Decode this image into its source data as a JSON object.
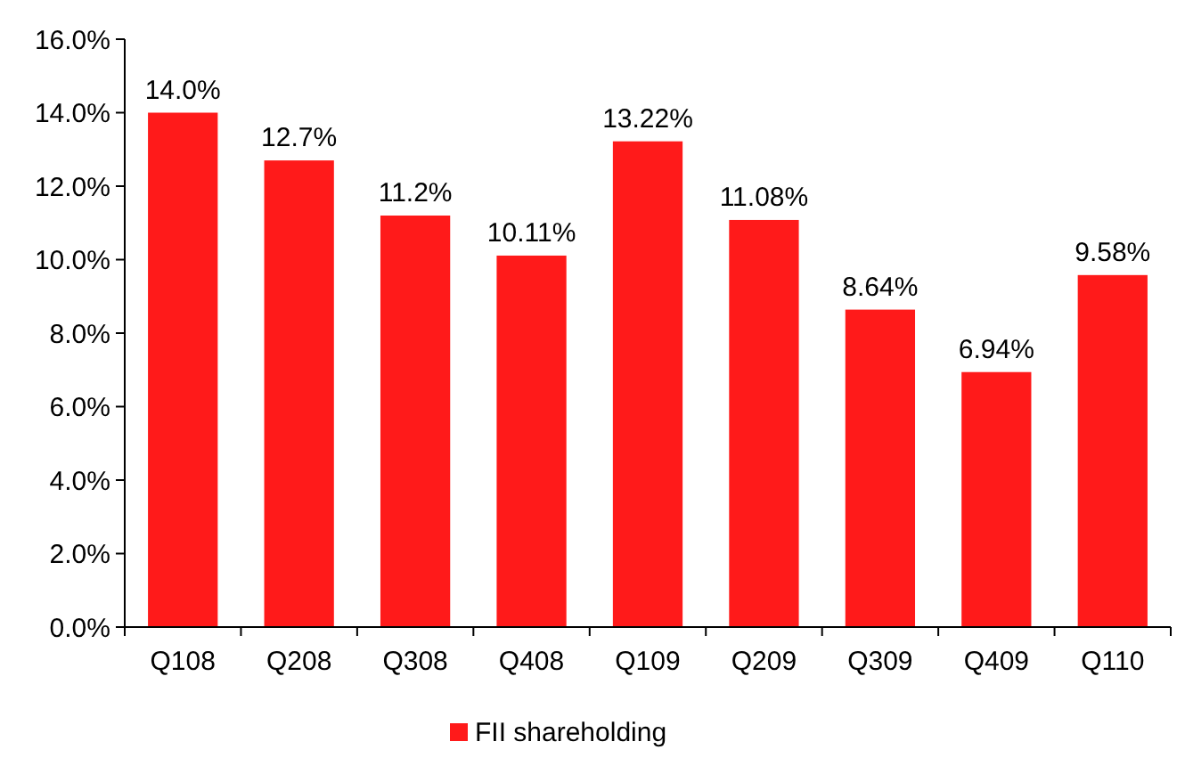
{
  "chart_data": {
    "type": "bar",
    "categories": [
      "Q108",
      "Q208",
      "Q308",
      "Q408",
      "Q109",
      "Q209",
      "Q309",
      "Q409",
      "Q110"
    ],
    "series": [
      {
        "name": "FII shareholding",
        "color": "#ff1a1a",
        "values": [
          14.0,
          12.7,
          11.2,
          10.11,
          13.22,
          11.08,
          8.64,
          6.94,
          9.58
        ],
        "value_labels": [
          "14.0%",
          "12.7%",
          "11.2%",
          "10.11%",
          "13.22%",
          "11.08%",
          "8.64%",
          "6.94%",
          "9.58%"
        ]
      }
    ],
    "ylim": [
      0,
      16
    ],
    "yticks": [
      {
        "value": 0,
        "label": "0.0%"
      },
      {
        "value": 2,
        "label": "2.0%"
      },
      {
        "value": 4,
        "label": "4.0%"
      },
      {
        "value": 6,
        "label": "6.0%"
      },
      {
        "value": 8,
        "label": "8.0%"
      },
      {
        "value": 10,
        "label": "10.0%"
      },
      {
        "value": 12,
        "label": "12.0%"
      },
      {
        "value": 14,
        "label": "14.0%"
      },
      {
        "value": 16,
        "label": "16.0%"
      }
    ],
    "grid": false,
    "legend": "bottom"
  }
}
